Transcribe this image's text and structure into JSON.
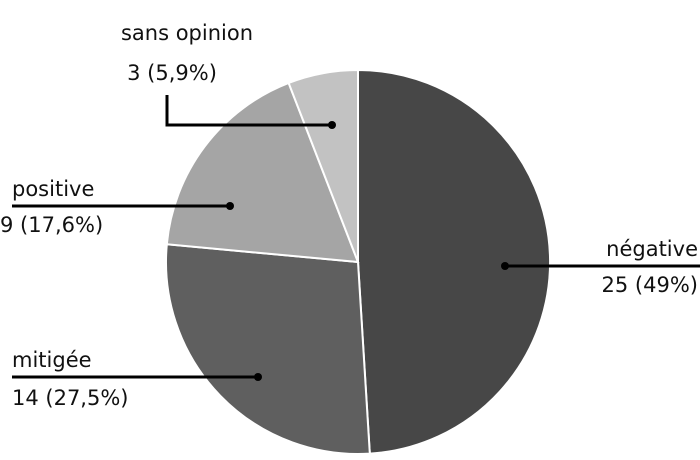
{
  "chart_data": {
    "type": "pie",
    "slices": [
      {
        "label": "négative",
        "value": 25,
        "value_label": "25 (49%)",
        "color": "#474747"
      },
      {
        "label": "mitigée",
        "value": 14,
        "value_label": "14 (27,5%)",
        "color": "#5f5f5f"
      },
      {
        "label": "positive",
        "value": 9,
        "value_label": "9 (17,6%)",
        "color": "#a5a5a5"
      },
      {
        "label": "sans opinion",
        "value": 3,
        "value_label": "3 (5,9%)",
        "color": "#c2c2c2"
      }
    ],
    "start_angle_deg": 0,
    "direction": "clockwise",
    "legend": "none"
  }
}
